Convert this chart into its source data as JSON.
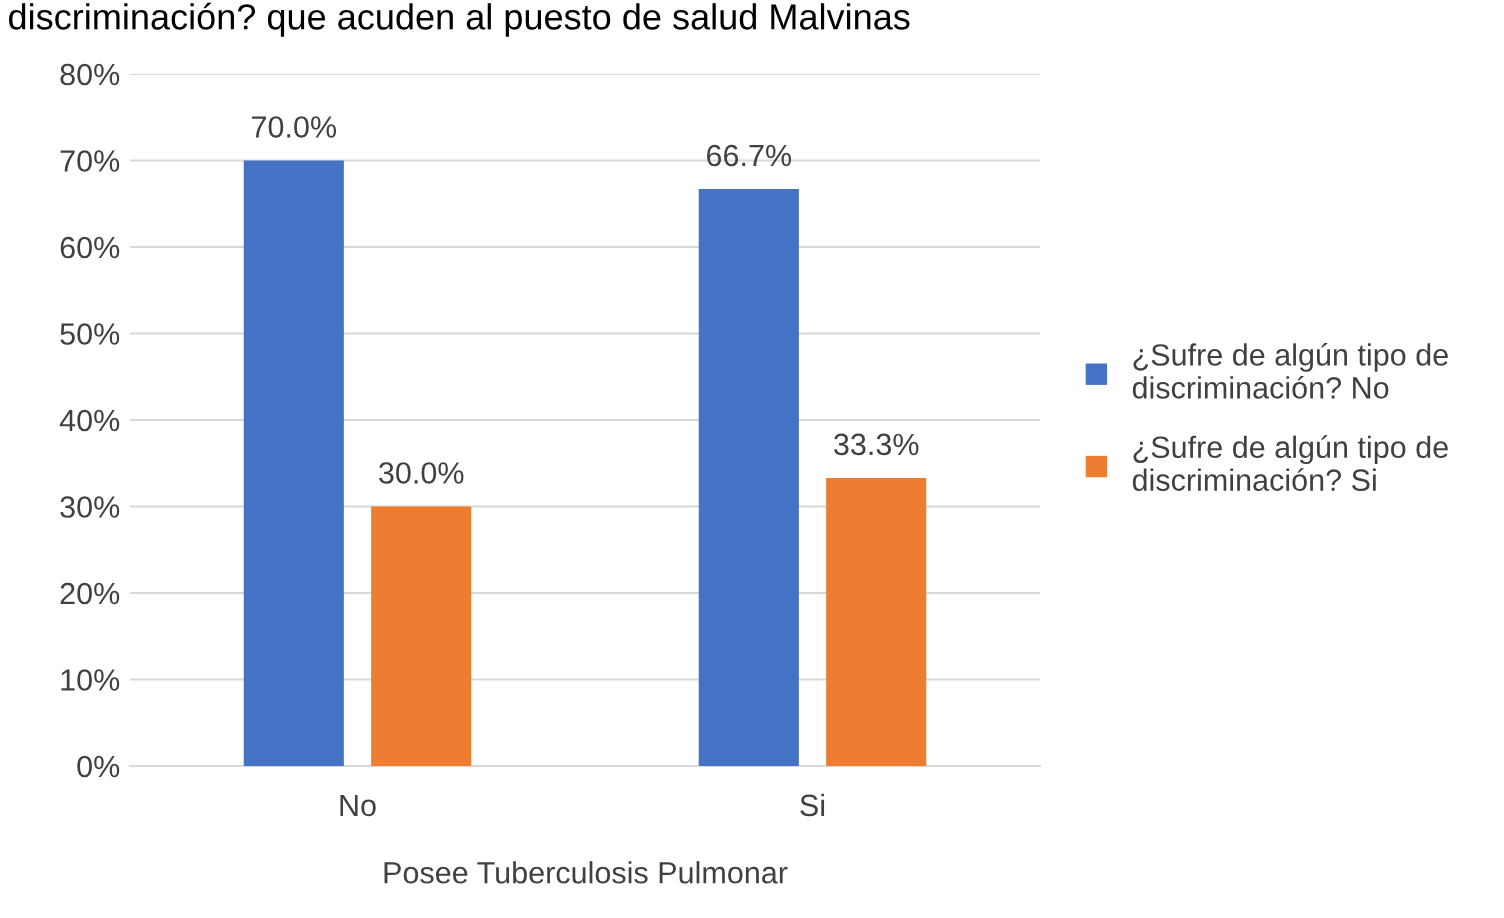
{
  "chart_data": {
    "type": "bar",
    "title": "discriminación? que acuden al puesto de salud Malvinas",
    "xlabel": "Posee Tuberculosis Pulmonar",
    "categories": [
      "No",
      "Si"
    ],
    "series": [
      {
        "name": "¿Sufre de algún tipo de discriminación? No",
        "color": "#4472c4",
        "values": [
          70.0,
          66.7
        ],
        "value_labels": [
          "70.0%",
          "66.7%"
        ]
      },
      {
        "name": "¿Sufre de algún tipo de discriminación? Si",
        "color": "#ed7d31",
        "values": [
          30.0,
          33.3
        ],
        "value_labels": [
          "30.0%",
          "33.3%"
        ]
      }
    ],
    "ylim": [
      0,
      80
    ],
    "yticks": [
      {
        "value": 0,
        "label": "0%"
      },
      {
        "value": 10,
        "label": "10%"
      },
      {
        "value": 20,
        "label": "20%"
      },
      {
        "value": 30,
        "label": "30%"
      },
      {
        "value": 40,
        "label": "40%"
      },
      {
        "value": 50,
        "label": "50%"
      },
      {
        "value": 60,
        "label": "60%"
      },
      {
        "value": 70,
        "label": "70%"
      },
      {
        "value": 80,
        "label": "80%"
      }
    ],
    "grid": "y",
    "legend": "right"
  }
}
